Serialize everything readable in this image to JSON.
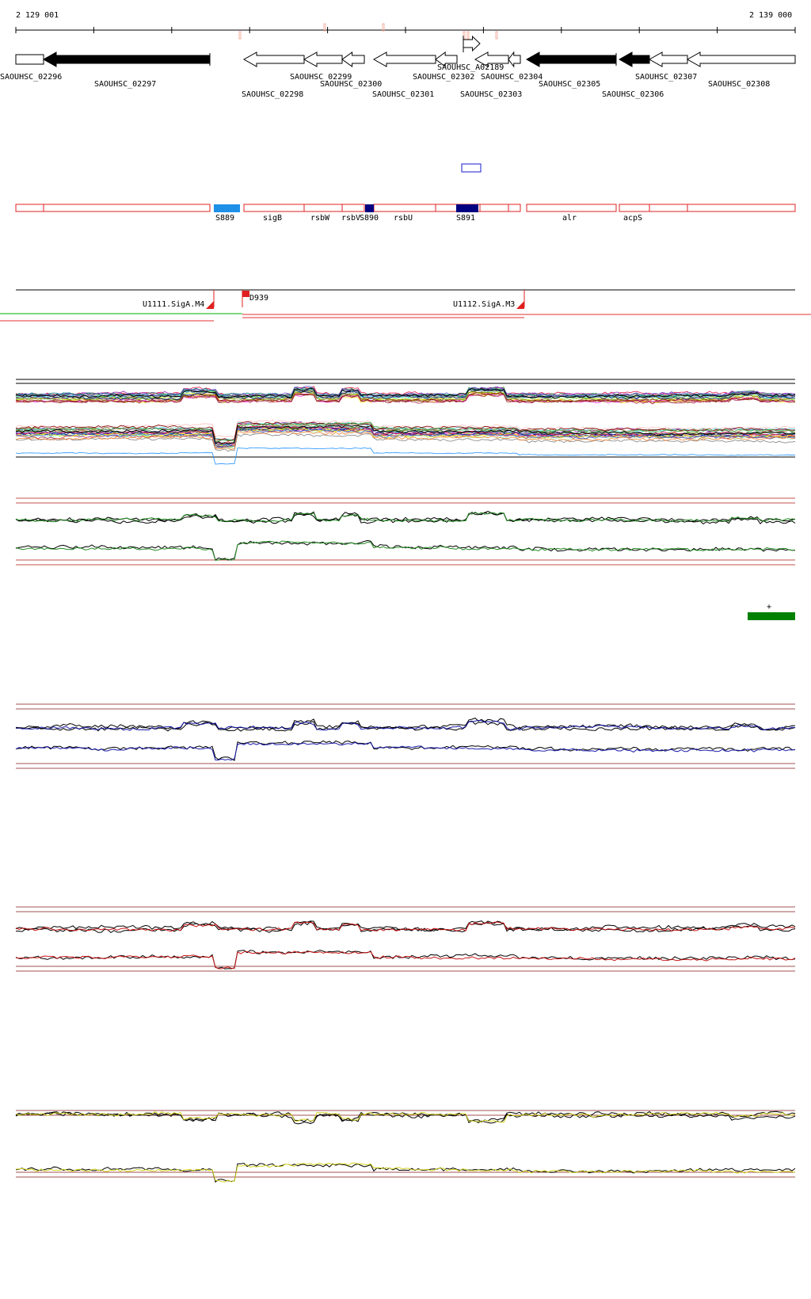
{
  "coordinates": {
    "start": "2 129 001",
    "end": "2 139 000"
  },
  "genes": [
    {
      "id": "SAOUHSC_02296",
      "strand": "+",
      "fill": "#ffffff"
    },
    {
      "id": "SAOUHSC_02297",
      "strand": "-",
      "fill": "#000000"
    },
    {
      "id": "SAOUHSC_02298",
      "strand": "-",
      "fill": "#ffffff"
    },
    {
      "id": "SAOUHSC_02299",
      "strand": "-",
      "fill": "#ffffff"
    },
    {
      "id": "SAOUHSC_02300",
      "strand": "-",
      "fill": "#ffffff"
    },
    {
      "id": "SAOUHSC_02301",
      "strand": "-",
      "fill": "#ffffff"
    },
    {
      "id": "SAOUHSC_02302",
      "strand": "-",
      "fill": "#ffffff"
    },
    {
      "id": "SAOUHSC_A02189",
      "strand": "+",
      "fill": "#ffffff"
    },
    {
      "id": "SAOUHSC_02303",
      "strand": "-",
      "fill": "#ffffff"
    },
    {
      "id": "SAOUHSC_02304",
      "strand": "-",
      "fill": "#ffffff"
    },
    {
      "id": "SAOUHSC_02305",
      "strand": "-",
      "fill": "#000000"
    },
    {
      "id": "SAOUHSC_02306",
      "strand": "-",
      "fill": "#000000"
    },
    {
      "id": "SAOUHSC_02307",
      "strand": "-",
      "fill": "#ffffff"
    },
    {
      "id": "SAOUHSC_02308",
      "strand": "-",
      "fill": "#ffffff"
    }
  ],
  "features": [
    {
      "id": "S889",
      "color": "#1e90e8"
    },
    {
      "id": "sigB",
      "color": "#ff0000"
    },
    {
      "id": "rsbW",
      "color": "#ff0000"
    },
    {
      "id": "rsbV",
      "color": "#ff0000"
    },
    {
      "id": "S890",
      "color": "#000080"
    },
    {
      "id": "rsbU",
      "color": "#ff0000"
    },
    {
      "id": "S891",
      "color": "#000080"
    },
    {
      "id": "alr",
      "color": "#ff0000"
    },
    {
      "id": "acpS",
      "color": "#ff0000"
    }
  ],
  "promoters": [
    {
      "id": "U1111.SigA.M4"
    },
    {
      "id": "D939"
    },
    {
      "id": "U1112.SigA.M3"
    }
  ],
  "condition_marker": {
    "label": "+",
    "color": "#008000"
  },
  "tracks": [
    {
      "id": "overview",
      "color": "multi"
    },
    {
      "id": "green",
      "color": "#228b22"
    },
    {
      "id": "blue",
      "color": "#1a1aaa"
    },
    {
      "id": "red",
      "color": "#c81414"
    },
    {
      "id": "yellow",
      "color": "#d4d420"
    }
  ]
}
